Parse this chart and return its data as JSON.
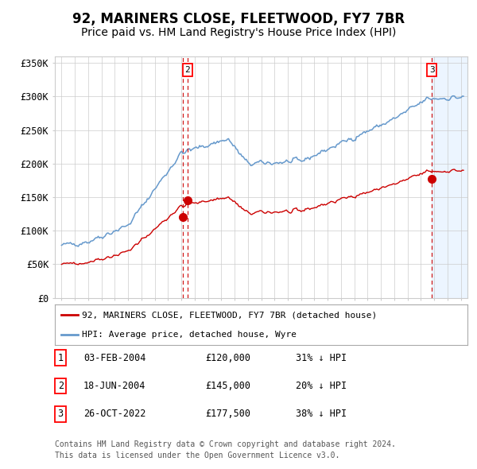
{
  "title": "92, MARINERS CLOSE, FLEETWOOD, FY7 7BR",
  "subtitle": "Price paid vs. HM Land Registry's House Price Index (HPI)",
  "ylim": [
    0,
    360000
  ],
  "yticks": [
    0,
    50000,
    100000,
    150000,
    200000,
    250000,
    300000,
    350000
  ],
  "ytick_labels": [
    "£0",
    "£50K",
    "£100K",
    "£150K",
    "£200K",
    "£250K",
    "£300K",
    "£350K"
  ],
  "hpi_color": "#6699cc",
  "price_color": "#cc0000",
  "vline_color": "#cc0000",
  "sale1_date": 2004.09,
  "sale1_price": 120000,
  "sale2_date": 2004.46,
  "sale2_price": 145000,
  "sale3_date": 2022.82,
  "sale3_price": 177500,
  "grid_color": "#cccccc",
  "background_color": "#ffffff",
  "future_bg_color": "#ddeeff",
  "title_fontsize": 12,
  "subtitle_fontsize": 10,
  "legend_label_red": "92, MARINERS CLOSE, FLEETWOOD, FY7 7BR (detached house)",
  "legend_label_blue": "HPI: Average price, detached house, Wyre",
  "table_rows": [
    {
      "num": "1",
      "date": "03-FEB-2004",
      "price": "£120,000",
      "hpi": "31% ↓ HPI"
    },
    {
      "num": "2",
      "date": "18-JUN-2004",
      "price": "£145,000",
      "hpi": "20% ↓ HPI"
    },
    {
      "num": "3",
      "date": "26-OCT-2022",
      "price": "£177,500",
      "hpi": "38% ↓ HPI"
    }
  ],
  "footer1": "Contains HM Land Registry data © Crown copyright and database right 2024.",
  "footer2": "This data is licensed under the Open Government Licence v3.0."
}
